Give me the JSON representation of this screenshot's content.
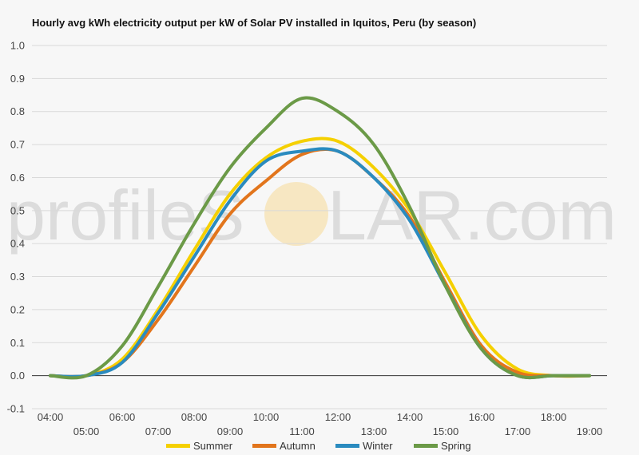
{
  "chart_data": {
    "type": "line",
    "title": "Hourly avg kWh electricity output per kW of Solar PV installed in Iquitos, Peru (by season)",
    "watermark_left": "profileS",
    "watermark_right": "LAR.com",
    "x": [
      "04:00",
      "05:00",
      "06:00",
      "07:00",
      "08:00",
      "09:00",
      "10:00",
      "11:00",
      "12:00",
      "13:00",
      "14:00",
      "15:00",
      "16:00",
      "17:00",
      "18:00",
      "19:00"
    ],
    "ylim": [
      -0.1,
      1.0
    ],
    "yticks": [
      "1.0",
      "0.9",
      "0.8",
      "0.7",
      "0.6",
      "0.5",
      "0.4",
      "0.3",
      "0.2",
      "0.1",
      "0.0",
      "-0.1"
    ],
    "grid": true,
    "legend": "bottom",
    "series": [
      {
        "name": "Summer",
        "color": "#f5d000",
        "values": [
          0.0,
          0.0,
          0.05,
          0.2,
          0.38,
          0.55,
          0.66,
          0.71,
          0.71,
          0.63,
          0.5,
          0.31,
          0.12,
          0.02,
          0.0,
          0.0
        ]
      },
      {
        "name": "Autumn",
        "color": "#e2751c",
        "values": [
          0.0,
          0.0,
          0.04,
          0.17,
          0.33,
          0.49,
          0.59,
          0.67,
          0.68,
          0.6,
          0.48,
          0.28,
          0.09,
          0.01,
          0.0,
          0.0
        ]
      },
      {
        "name": "Winter",
        "color": "#2a8bbf",
        "values": [
          0.0,
          0.0,
          0.04,
          0.19,
          0.36,
          0.53,
          0.65,
          0.68,
          0.68,
          0.6,
          0.47,
          0.27,
          0.08,
          0.0,
          0.0,
          0.0
        ]
      },
      {
        "name": "Spring",
        "color": "#6b9a47",
        "values": [
          0.0,
          0.0,
          0.09,
          0.27,
          0.46,
          0.63,
          0.75,
          0.84,
          0.8,
          0.7,
          0.51,
          0.27,
          0.08,
          0.0,
          0.0,
          0.0
        ]
      }
    ]
  }
}
